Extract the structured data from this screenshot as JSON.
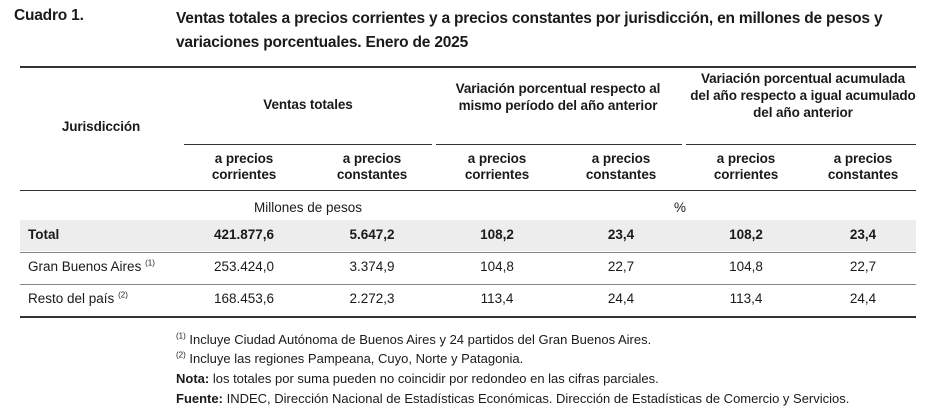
{
  "header": {
    "label": "Cuadro 1.",
    "title": "Ventas totales a precios corrientes y a precios constantes por jurisdicción, en millones de pesos y variaciones porcentuales. Enero de 2025"
  },
  "table": {
    "col_jurisdiccion": "Jurisdicción",
    "groups": [
      "Ventas totales",
      "Variación porcentual respecto al mismo período del año anterior",
      "Variación porcentual acumulada del año respecto a igual acumulado del año anterior"
    ],
    "subheaders": [
      "a precios corrientes",
      "a precios constantes",
      "a precios corrientes",
      "a precios constantes",
      "a precios corrientes",
      "a precios constantes"
    ],
    "unit_millones": "Millones de pesos",
    "unit_pct": "%",
    "rows": [
      {
        "label": "Total",
        "sup": "",
        "values": [
          "421.877,6",
          "5.647,2",
          "108,2",
          "23,4",
          "108,2",
          "23,4"
        ]
      },
      {
        "label": "Gran Buenos Aires",
        "sup": "(1)",
        "values": [
          "253.424,0",
          "3.374,9",
          "104,8",
          "22,7",
          "104,8",
          "22,7"
        ]
      },
      {
        "label": "Resto del país",
        "sup": "(2)",
        "values": [
          "168.453,6",
          "2.272,3",
          "113,4",
          "24,4",
          "113,4",
          "24,4"
        ]
      }
    ]
  },
  "notes": {
    "n1_mark": "(1)",
    "n1_text": "Incluye Ciudad Autónoma de Buenos Aires y 24 partidos del Gran Buenos Aires.",
    "n2_mark": "(2)",
    "n2_text": "Incluye las regiones Pampeana, Cuyo, Norte y Patagonia.",
    "nota_label": "Nota:",
    "nota_text": "los totales por suma pueden no coincidir por redondeo en las cifras parciales.",
    "fuente_label": "Fuente:",
    "fuente_text": "INDEC, Dirección Nacional de Estadísticas Económicas. Dirección de Estadísticas de Comercio y Servicios."
  }
}
